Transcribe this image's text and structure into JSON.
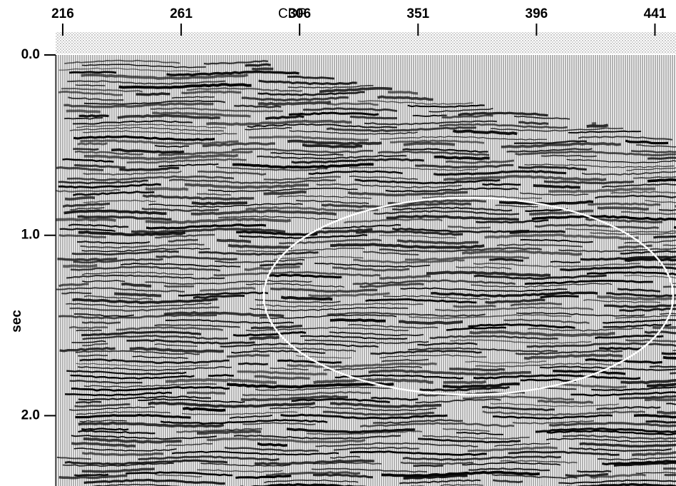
{
  "chart_data": {
    "type": "seismic",
    "x_label": "CDP",
    "y_label": "sec",
    "xlim": [
      213.3,
      449
    ],
    "xticks": [
      216,
      261,
      306,
      351,
      396,
      441
    ],
    "ylim": [
      0,
      2.39
    ],
    "yticks": [
      {
        "value": 0,
        "label": "0.0"
      },
      {
        "value": 1,
        "label": "1.0"
      },
      {
        "value": 2,
        "label": "2.0"
      }
    ]
  }
}
